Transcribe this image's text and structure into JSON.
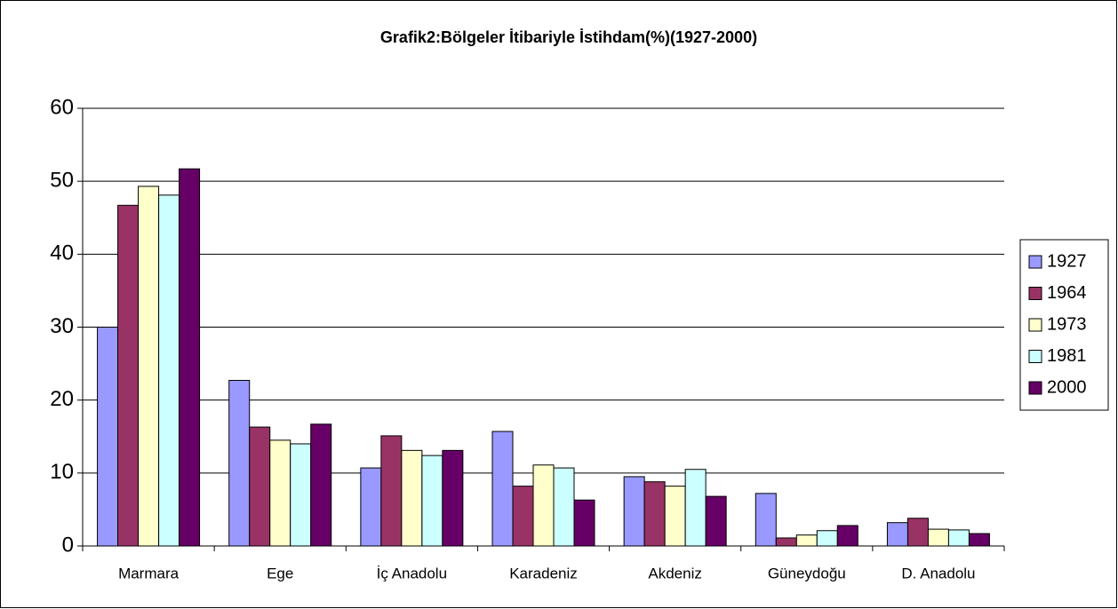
{
  "chart_data": {
    "type": "bar",
    "title": "Grafik2:Bölgeler İtibariyle İstihdam(%)(1927-2000)",
    "categories": [
      "Marmara",
      "Ege",
      "İç Anadolu",
      "Karadeniz",
      "Akdeniz",
      "Güneydoğu",
      "D. Anadolu"
    ],
    "series": [
      {
        "name": "1927",
        "color": "#9999ff",
        "values": [
          30.0,
          22.7,
          10.7,
          15.7,
          9.5,
          7.2,
          3.2
        ]
      },
      {
        "name": "1964",
        "color": "#993366",
        "values": [
          46.7,
          16.3,
          15.1,
          8.2,
          8.8,
          1.1,
          3.8
        ]
      },
      {
        "name": "1973",
        "color": "#ffffcc",
        "values": [
          49.3,
          14.5,
          13.1,
          11.1,
          8.2,
          1.5,
          2.3
        ]
      },
      {
        "name": "1981",
        "color": "#ccffff",
        "values": [
          48.1,
          14.0,
          12.4,
          10.7,
          10.5,
          2.1,
          2.2
        ]
      },
      {
        "name": "2000",
        "color": "#660066",
        "values": [
          51.7,
          16.7,
          13.1,
          6.3,
          6.8,
          2.8,
          1.7
        ]
      }
    ],
    "ylim": [
      0,
      60
    ],
    "yticks": [
      0,
      10,
      20,
      30,
      40,
      50,
      60
    ],
    "grid": true,
    "legend": "right"
  }
}
